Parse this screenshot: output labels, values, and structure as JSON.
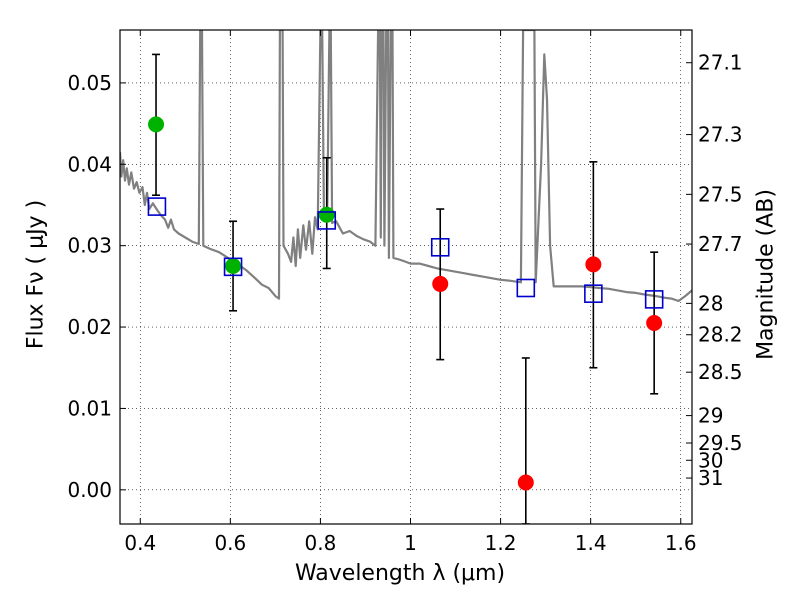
{
  "chart_data": {
    "type": "scatter",
    "xlabel": "Wavelength  λ (μm)",
    "ylabel": "Flux  Fν  ( μJy )",
    "y2label": "Magnitude (AB)",
    "xlim": [
      0.355,
      1.625
    ],
    "ylim": [
      -0.0042,
      0.0565
    ],
    "grid": true,
    "x_ticks": [
      0.4,
      0.6,
      0.8,
      1.0,
      1.2,
      1.4,
      1.6
    ],
    "x_tick_labels": [
      "0.4",
      "0.6",
      "0.8",
      "1",
      "1.2",
      "1.4",
      "1.6"
    ],
    "y_ticks": [
      0.0,
      0.01,
      0.02,
      0.03,
      0.04,
      0.05
    ],
    "y_tick_labels": [
      "0.00",
      "0.01",
      "0.02",
      "0.03",
      "0.04",
      "0.05"
    ],
    "mag_ticks": [
      "27.1",
      "27.3",
      "27.5",
      "27.7",
      "28",
      "28.2",
      "28.5",
      "29",
      "29.5",
      "30",
      "31"
    ],
    "template_spectrum": {
      "color": "#808080",
      "points": [
        [
          0.355,
          0.0415
        ],
        [
          0.358,
          0.0385
        ],
        [
          0.362,
          0.0405
        ],
        [
          0.366,
          0.038
        ],
        [
          0.37,
          0.0395
        ],
        [
          0.375,
          0.0375
        ],
        [
          0.38,
          0.039
        ],
        [
          0.386,
          0.037
        ],
        [
          0.392,
          0.0378
        ],
        [
          0.398,
          0.0365
        ],
        [
          0.405,
          0.0372
        ],
        [
          0.41,
          0.035
        ],
        [
          0.415,
          0.0365
        ],
        [
          0.42,
          0.0345
        ],
        [
          0.428,
          0.0352
        ],
        [
          0.436,
          0.0345
        ],
        [
          0.445,
          0.0338
        ],
        [
          0.455,
          0.0332
        ],
        [
          0.462,
          0.0322
        ],
        [
          0.468,
          0.0332
        ],
        [
          0.475,
          0.032
        ],
        [
          0.485,
          0.0315
        ],
        [
          0.5,
          0.031
        ],
        [
          0.515,
          0.0305
        ],
        [
          0.53,
          0.0302
        ],
        [
          0.533,
          0.0565
        ],
        [
          0.537,
          0.0565
        ],
        [
          0.54,
          0.03
        ],
        [
          0.555,
          0.0296
        ],
        [
          0.575,
          0.0292
        ],
        [
          0.595,
          0.0285
        ],
        [
          0.615,
          0.0278
        ],
        [
          0.635,
          0.027
        ],
        [
          0.655,
          0.026
        ],
        [
          0.67,
          0.0252
        ],
        [
          0.685,
          0.0248
        ],
        [
          0.7,
          0.0238
        ],
        [
          0.708,
          0.0235
        ],
        [
          0.71,
          0.0565
        ],
        [
          0.716,
          0.0565
        ],
        [
          0.718,
          0.03
        ],
        [
          0.728,
          0.029
        ],
        [
          0.735,
          0.028
        ],
        [
          0.74,
          0.031
        ],
        [
          0.745,
          0.0275
        ],
        [
          0.75,
          0.032
        ],
        [
          0.755,
          0.0285
        ],
        [
          0.762,
          0.0325
        ],
        [
          0.768,
          0.0295
        ],
        [
          0.775,
          0.033
        ],
        [
          0.782,
          0.029
        ],
        [
          0.788,
          0.0335
        ],
        [
          0.794,
          0.032
        ],
        [
          0.8,
          0.0565
        ],
        [
          0.804,
          0.0565
        ],
        [
          0.808,
          0.033
        ],
        [
          0.815,
          0.0338
        ],
        [
          0.82,
          0.0565
        ],
        [
          0.823,
          0.0565
        ],
        [
          0.826,
          0.0328
        ],
        [
          0.835,
          0.033
        ],
        [
          0.85,
          0.0315
        ],
        [
          0.865,
          0.0318
        ],
        [
          0.88,
          0.0312
        ],
        [
          0.895,
          0.0308
        ],
        [
          0.91,
          0.0305
        ],
        [
          0.922,
          0.03
        ],
        [
          0.928,
          0.0565
        ],
        [
          0.932,
          0.0565
        ],
        [
          0.934,
          0.031
        ],
        [
          0.936,
          0.0565
        ],
        [
          0.94,
          0.0565
        ],
        [
          0.942,
          0.03
        ],
        [
          0.946,
          0.0565
        ],
        [
          0.95,
          0.0565
        ],
        [
          0.952,
          0.0285
        ],
        [
          0.956,
          0.0565
        ],
        [
          0.96,
          0.0565
        ],
        [
          0.962,
          0.0285
        ],
        [
          0.975,
          0.0283
        ],
        [
          0.99,
          0.028
        ],
        [
          1.0,
          0.0278
        ],
        [
          1.02,
          0.0278
        ],
        [
          1.04,
          0.0275
        ],
        [
          1.06,
          0.0272
        ],
        [
          1.08,
          0.027
        ],
        [
          1.1,
          0.0268
        ],
        [
          1.12,
          0.0266
        ],
        [
          1.14,
          0.0264
        ],
        [
          1.16,
          0.0262
        ],
        [
          1.18,
          0.026
        ],
        [
          1.2,
          0.0258
        ],
        [
          1.22,
          0.0257
        ],
        [
          1.245,
          0.0255
        ],
        [
          1.25,
          0.0565
        ],
        [
          1.275,
          0.0565
        ],
        [
          1.278,
          0.0255
        ],
        [
          1.29,
          0.04
        ],
        [
          1.297,
          0.0535
        ],
        [
          1.303,
          0.048
        ],
        [
          1.31,
          0.03
        ],
        [
          1.318,
          0.025
        ],
        [
          1.34,
          0.025
        ],
        [
          1.36,
          0.025
        ],
        [
          1.38,
          0.025
        ],
        [
          1.4,
          0.0249
        ],
        [
          1.42,
          0.0248
        ],
        [
          1.44,
          0.0247
        ],
        [
          1.46,
          0.0245
        ],
        [
          1.48,
          0.0243
        ],
        [
          1.5,
          0.0242
        ],
        [
          1.52,
          0.024
        ],
        [
          1.545,
          0.0238
        ],
        [
          1.565,
          0.0236
        ],
        [
          1.58,
          0.0235
        ],
        [
          1.595,
          0.0232
        ],
        [
          1.61,
          0.0238
        ],
        [
          1.625,
          0.0245
        ]
      ]
    },
    "observed_errors": [
      {
        "x": 0.435,
        "y_low": 0.0362,
        "y_high": 0.0535
      },
      {
        "x": 0.606,
        "y_low": 0.022,
        "y_high": 0.033
      },
      {
        "x": 0.814,
        "y_low": 0.0272,
        "y_high": 0.0408
      },
      {
        "x": 1.066,
        "y_low": 0.016,
        "y_high": 0.0345
      },
      {
        "x": 1.256,
        "y_low": -0.0042,
        "y_high": 0.0162
      },
      {
        "x": 1.406,
        "y_low": 0.015,
        "y_high": 0.0403
      },
      {
        "x": 1.541,
        "y_low": 0.0118,
        "y_high": 0.0292
      }
    ],
    "series": [
      {
        "marker": "circle",
        "color": "#00b200",
        "points": [
          [
            0.435,
            0.0449
          ],
          [
            0.606,
            0.0275
          ],
          [
            0.814,
            0.0338
          ]
        ]
      },
      {
        "marker": "circle",
        "color": "#ff0000",
        "points": [
          [
            1.066,
            0.0253
          ],
          [
            1.256,
            0.0009
          ],
          [
            1.406,
            0.0277
          ],
          [
            1.541,
            0.0205
          ]
        ]
      },
      {
        "marker": "square",
        "color": "#0000cc",
        "points": [
          [
            0.437,
            0.0348
          ],
          [
            0.606,
            0.0274
          ],
          [
            0.814,
            0.0331
          ],
          [
            1.066,
            0.0298
          ],
          [
            1.256,
            0.0248
          ],
          [
            1.406,
            0.0241
          ],
          [
            1.541,
            0.0234
          ]
        ]
      }
    ]
  }
}
